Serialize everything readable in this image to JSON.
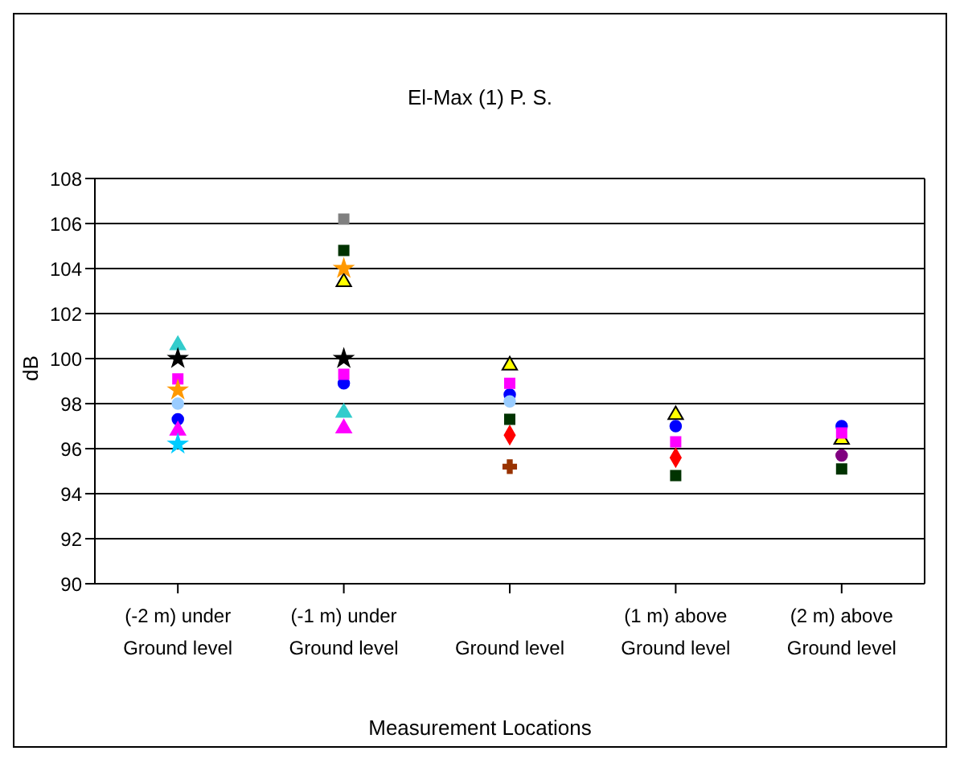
{
  "chart_data": {
    "type": "scatter",
    "title": "El-Max (1) P. S.",
    "xlabel": "Measurement Locations",
    "ylabel": "dB",
    "categories": [
      "(-2 m) under\nGround level",
      "(-1 m) under\nGround level",
      "Ground level",
      "(1 m) above\nGround level",
      "(2 m) above\nGround level"
    ],
    "ylim": [
      90,
      108
    ],
    "yticks": [
      90,
      92,
      94,
      96,
      98,
      100,
      102,
      104,
      106,
      108
    ],
    "grid": "y",
    "series": [
      {
        "color": "#ffff00",
        "marker": "triangle",
        "values": [
          null,
          103.4,
          99.7,
          97.5,
          96.4
        ]
      },
      {
        "color": "#0000ff",
        "marker": "circle",
        "values": [
          97.3,
          98.9,
          98.4,
          97.0,
          97.0
        ]
      },
      {
        "color": "#ff00ff",
        "marker": "square",
        "values": [
          99.1,
          99.3,
          98.9,
          96.3,
          96.7
        ]
      },
      {
        "color": "#ff0000",
        "marker": "diamond",
        "values": [
          null,
          null,
          96.6,
          95.6,
          null
        ]
      },
      {
        "color": "#003300",
        "marker": "square",
        "values": [
          null,
          104.8,
          97.3,
          94.8,
          95.1
        ]
      },
      {
        "color": "#808080",
        "marker": "square",
        "values": [
          null,
          106.2,
          null,
          null,
          null
        ]
      },
      {
        "color": "#33cccc",
        "marker": "triangle",
        "values": [
          100.6,
          97.6,
          null,
          null,
          null
        ]
      },
      {
        "color": "#ff9900",
        "marker": "star",
        "values": [
          98.6,
          104.0,
          null,
          null,
          null
        ]
      },
      {
        "color": "#000000",
        "marker": "star",
        "values": [
          100.0,
          100.0,
          null,
          null,
          null
        ]
      },
      {
        "color": "#ff00ff",
        "marker": "triangle",
        "values": [
          96.8,
          96.9,
          null,
          null,
          null
        ]
      },
      {
        "color": "#993300",
        "marker": "cross",
        "values": [
          null,
          null,
          95.2,
          null,
          null
        ]
      },
      {
        "color": "#99ccff",
        "marker": "circle",
        "values": [
          98.0,
          null,
          98.1,
          null,
          null
        ]
      },
      {
        "color": "#00ccff",
        "marker": "star",
        "values": [
          96.2,
          null,
          null,
          null,
          null
        ]
      },
      {
        "color": "#800080",
        "marker": "circle",
        "values": [
          null,
          null,
          null,
          null,
          95.7
        ]
      }
    ]
  }
}
